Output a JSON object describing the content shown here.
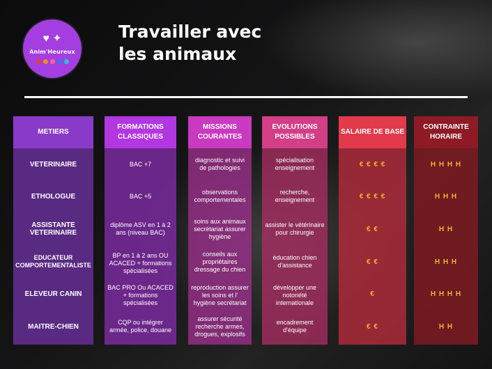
{
  "logo": {
    "text": "Anim'Heureux",
    "mark": "♥ ✦",
    "dots": [
      "#e0403a",
      "#f08a2a",
      "#ff5fa0",
      "#2f7be0",
      "#35b8e0"
    ]
  },
  "title": {
    "line1": "Travailler avec",
    "line2": "les  animaux"
  },
  "colors": {
    "metiers": "#592a82",
    "formations": "#7f2ba3",
    "missions": "#9a2f8a",
    "evolutions": "#a92e62",
    "salaire": "#b22b3b",
    "contrainte": "#7f1a22"
  },
  "columns": [
    {
      "header": "METIERS",
      "rows": [
        "VETERINAIRE",
        "ETHOLOGUE",
        "ASSISTANTE VETERINAIRE",
        "EDUCATEUR COMPORTEMENTALISTE",
        "ELEVEUR CANIN",
        "MAITRE-CHIEN"
      ]
    },
    {
      "header": "FORMATIONS CLASSIQUES",
      "rows": [
        "BAC +7",
        "BAC +5",
        "diplôme ASV en 1 à 2 ans (niveau BAC)",
        "BP en 1 à 2 ans OU ACACED + formations spécialisées",
        "BAC PRO Ou ACACED + formations spécialisées",
        "CQP  ou intégrer armée, police, douane"
      ]
    },
    {
      "header": "MISSIONS COURANTES",
      "rows": [
        "diagnostic et suivi de pathologies",
        "observations comportementales",
        "soins aux animaux secrétariat assurer hygiène",
        "conseils aux propriétaires dressage du chien",
        "reproduction assurer les soins et l' hygiène secrétariat",
        "assurer sécurité recherche armes, drogues, explosifs"
      ]
    },
    {
      "header": "EVOLUTIONS POSSIBLES",
      "rows": [
        "spécialisation enseignement",
        "recherche, enseignement",
        "assister le vétérinaire pour chirurgie",
        "éducation chien d'assistance",
        "développer une notoriété internationale",
        "encadrement d'équipe"
      ]
    },
    {
      "header": "SALAIRE DE BASE",
      "rows": [
        "€ € € €",
        "€ € € €",
        "€ €",
        "€ €",
        "€",
        "€ €"
      ]
    },
    {
      "header": "CONTRAINTE HORAIRE",
      "rows": [
        "H H H H",
        "H H H",
        "H H",
        "H H H",
        "H H H H",
        "H H"
      ]
    }
  ]
}
